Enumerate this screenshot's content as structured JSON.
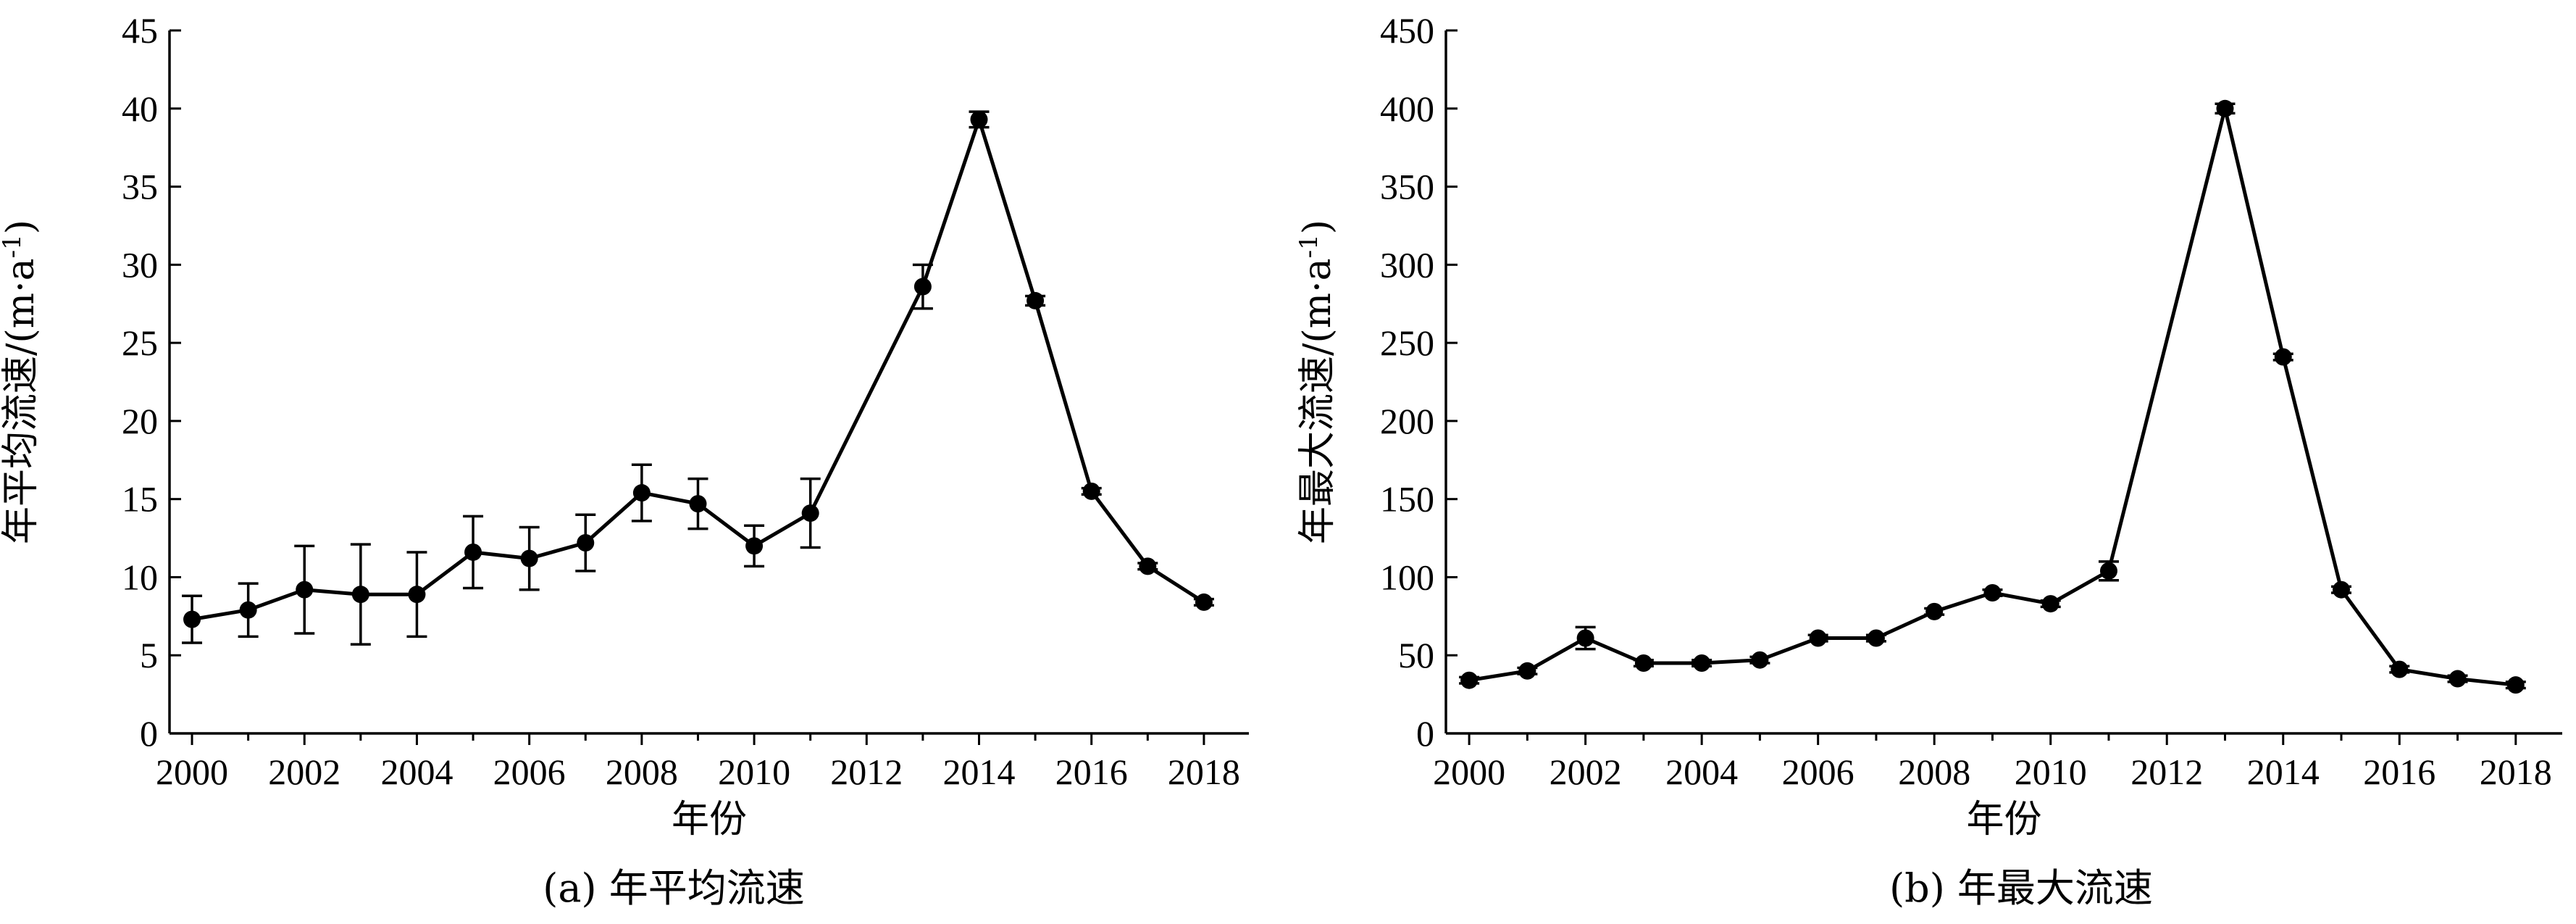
{
  "chart_data": [
    {
      "type": "line",
      "caption": "(a) 年平均流速",
      "xlabel": "年份",
      "ylabel": "年平均流速/(m·a-1)",
      "ylabel_main": "年平均流速/(m·a",
      "ylabel_sup": "-1",
      "ylabel_end": ")",
      "xlim": [
        1999.6,
        2018.8
      ],
      "ylim": [
        0,
        45
      ],
      "xticks": [
        2000,
        2002,
        2004,
        2006,
        2008,
        2010,
        2012,
        2014,
        2016,
        2018
      ],
      "yticks": [
        0,
        5,
        10,
        15,
        20,
        25,
        30,
        35,
        40,
        45
      ],
      "grid": false,
      "series": [
        {
          "x": [
            2000,
            2001,
            2002,
            2003,
            2004,
            2005,
            2006,
            2007,
            2008,
            2009,
            2010,
            2011,
            2013,
            2014,
            2015,
            2016,
            2017,
            2018
          ],
          "y": [
            7.3,
            7.9,
            9.2,
            8.9,
            8.9,
            11.6,
            11.2,
            12.2,
            15.4,
            14.7,
            12.0,
            14.1,
            28.6,
            39.3,
            27.7,
            15.5,
            10.7,
            8.4
          ],
          "err": [
            1.5,
            1.7,
            2.8,
            3.2,
            2.7,
            2.3,
            2.0,
            1.8,
            1.8,
            1.6,
            1.3,
            2.2,
            1.4,
            0.5,
            0.3,
            0.2,
            0.2,
            0.2
          ]
        }
      ]
    },
    {
      "type": "line",
      "caption": "(b) 年最大流速",
      "xlabel": "年份",
      "ylabel": "年最大流速/(m·a-1)",
      "ylabel_main": "年最大流速/(m·a",
      "ylabel_sup": "-1",
      "ylabel_end": ")",
      "xlim": [
        1999.6,
        2018.8
      ],
      "ylim": [
        0,
        450
      ],
      "xticks": [
        2000,
        2002,
        2004,
        2006,
        2008,
        2010,
        2012,
        2014,
        2016,
        2018
      ],
      "yticks": [
        0,
        50,
        100,
        150,
        200,
        250,
        300,
        350,
        400,
        450
      ],
      "grid": false,
      "series": [
        {
          "x": [
            2000,
            2001,
            2002,
            2003,
            2004,
            2005,
            2006,
            2007,
            2008,
            2009,
            2010,
            2011,
            2013,
            2014,
            2015,
            2016,
            2017,
            2018
          ],
          "y": [
            34,
            40,
            61,
            45,
            45,
            47,
            61,
            61,
            78,
            90,
            83,
            104,
            400,
            241,
            92,
            41,
            35,
            31
          ],
          "err": [
            2,
            2,
            7,
            2,
            2,
            2,
            2,
            2,
            2,
            2,
            2,
            6,
            3,
            2,
            2,
            2,
            2,
            2
          ]
        }
      ]
    }
  ]
}
